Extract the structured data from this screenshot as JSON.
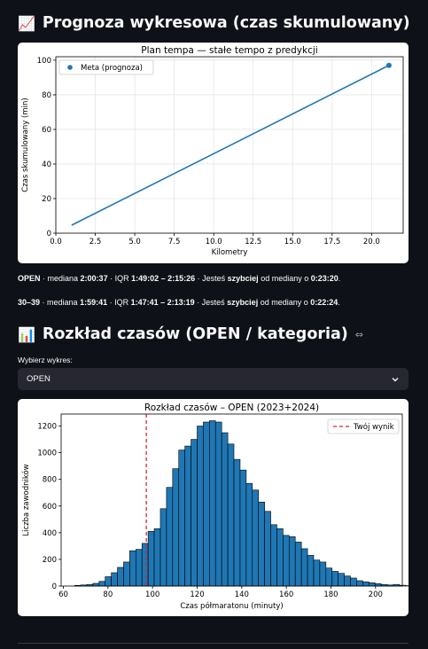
{
  "section1": {
    "emoji": "📈",
    "title": "Prognoza wykresowa (czas skumulowany)"
  },
  "chart1": {
    "chart_data": {
      "type": "line",
      "title": "Plan tempa — stałe tempo z predykcji",
      "xlabel": "Kilometry",
      "ylabel": "Czas skumulowany (min)",
      "xlim": [
        0,
        22
      ],
      "ylim": [
        0,
        102
      ],
      "xticks": [
        "0.0",
        "2.5",
        "5.0",
        "7.5",
        "10.0",
        "12.5",
        "15.0",
        "17.5",
        "20.0"
      ],
      "yticks": [
        "0",
        "20",
        "40",
        "60",
        "80",
        "100"
      ],
      "series": [
        {
          "name": "",
          "x": [
            1,
            21.0975
          ],
          "y": [
            4.6,
            97.0
          ],
          "color": "#1f77b4"
        }
      ],
      "points": [
        {
          "x": 21.0975,
          "y": 97.0
        }
      ],
      "legend": {
        "label": "Meta (prognoza)",
        "position": "top-left"
      },
      "grid": true
    }
  },
  "stats": {
    "line1": {
      "group": "OPEN",
      "mid1": " · mediana ",
      "median": "2:00:37",
      "mid2": " · IQR ",
      "iqr": "1:49:02 – 2:15:26",
      "mid3": " · Jesteś ",
      "faster": "szybciej",
      "mid4": " od mediany o ",
      "diff": "0:23:20",
      "end": "."
    },
    "line2": {
      "group": "30–39",
      "mid1": " · mediana ",
      "median": "1:59:41",
      "mid2": " · IQR ",
      "iqr": "1:47:41 – 2:13:19",
      "mid3": " · Jesteś ",
      "faster": "szybciej",
      "mid4": " od mediany o ",
      "diff": "0:22:24",
      "end": "."
    }
  },
  "section2": {
    "emoji": "📊",
    "title": "Rozkład czasów (OPEN / kategoria)",
    "link_icon": "⇔"
  },
  "select": {
    "label": "Wybierz wykres:",
    "value": "OPEN",
    "icon": "chevron-down-icon"
  },
  "chart2": {
    "chart_data": {
      "type": "bar",
      "title": "Rozkład czasów – OPEN (2023+2024)",
      "xlabel": "Czas półmaratonu (minuty)",
      "ylabel": "Liczba zawodników",
      "xlim": [
        59,
        212
      ],
      "ylim": [
        0,
        1290
      ],
      "xticks": [
        "60",
        "80",
        "100",
        "120",
        "140",
        "160",
        "180",
        "200"
      ],
      "yticks": [
        "0",
        "200",
        "400",
        "600",
        "800",
        "1000",
        "1200"
      ],
      "bar_color": "#1f77b4",
      "bin_width": 2.75,
      "bin_start": 65,
      "values": [
        5,
        8,
        12,
        20,
        35,
        70,
        100,
        140,
        180,
        265,
        275,
        320,
        410,
        430,
        580,
        740,
        880,
        1020,
        1050,
        1100,
        1200,
        1230,
        1240,
        1230,
        1150,
        1065,
        950,
        870,
        770,
        720,
        630,
        560,
        460,
        430,
        380,
        370,
        330,
        280,
        230,
        195,
        180,
        135,
        110,
        95,
        75,
        60,
        40,
        32,
        25,
        18,
        12,
        8,
        12,
        6,
        3
      ],
      "marker": {
        "x": 97.2,
        "label": "Twój wynik",
        "color": "#d62728"
      },
      "legend": {
        "label": "Twój wynik",
        "position": "top-right"
      }
    }
  }
}
